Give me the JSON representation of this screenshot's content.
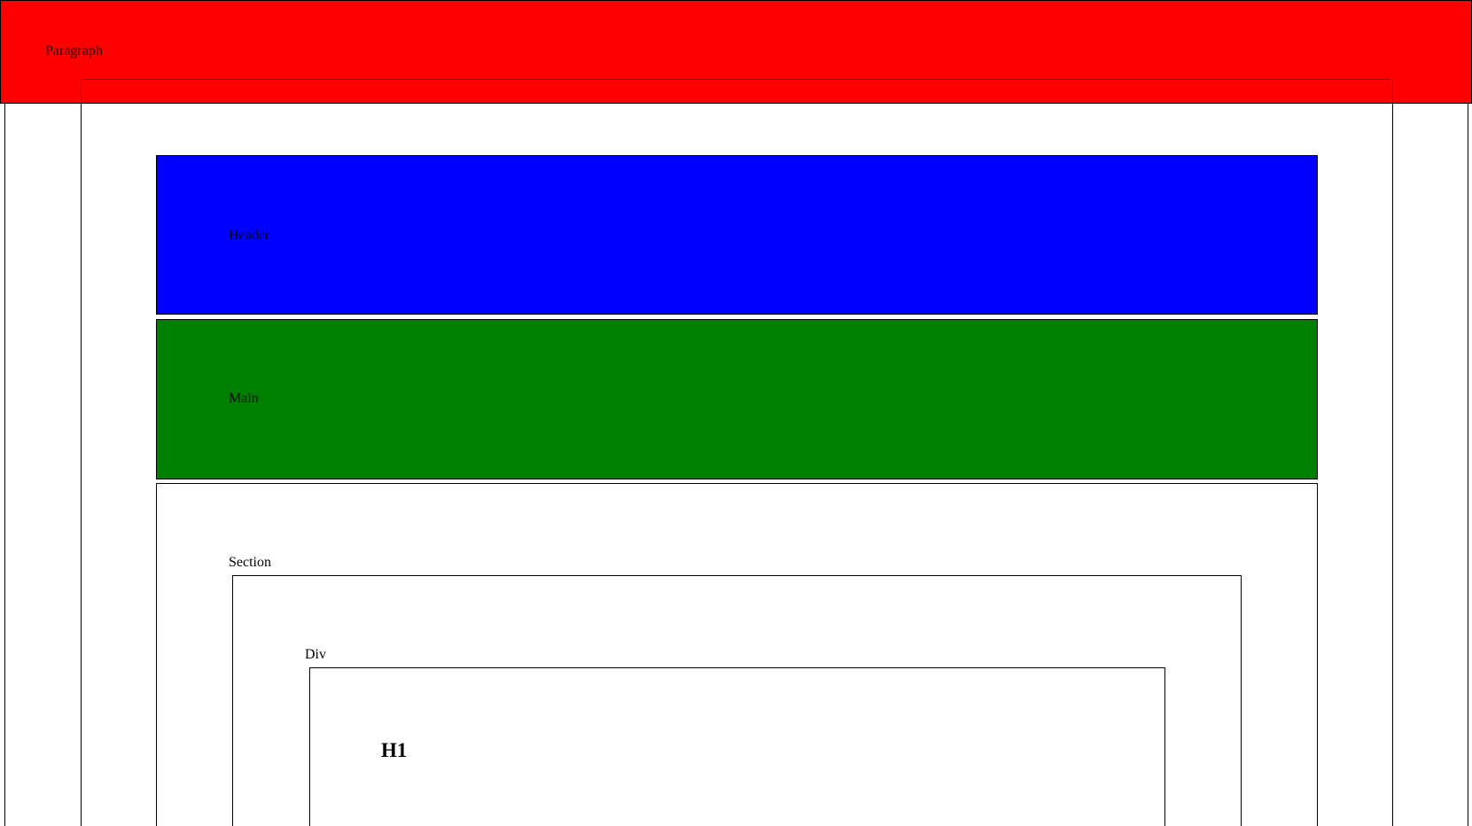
{
  "paragraph": {
    "label": "Paragraph",
    "color": "#ff0000"
  },
  "header": {
    "label": "Header",
    "color": "#0000ff"
  },
  "main": {
    "label": "Main",
    "color": "#008000"
  },
  "section": {
    "label": "Section"
  },
  "div": {
    "label": "Div"
  },
  "h1": {
    "label": "H1"
  }
}
